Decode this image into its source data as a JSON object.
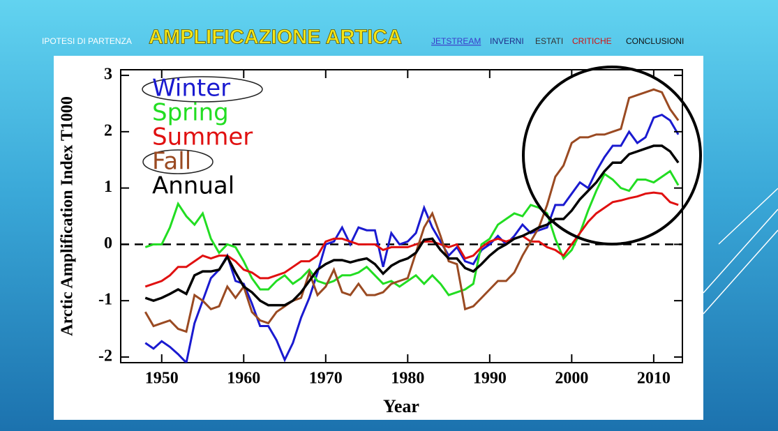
{
  "nav": [
    "IPOTESI DI PARTENZA",
    "AMPLIFICAZIONE ARTICA",
    "JETSTREAM",
    "INVERNI",
    "ESTATI",
    "CRITICHE",
    "CONCLUSIONI"
  ],
  "chart_data": {
    "type": "line",
    "x_label": "Year",
    "y_label": "Arctic Amplification Index T1000",
    "xlim": [
      1945,
      2013.5
    ],
    "xticks": [
      1950,
      1960,
      1970,
      1980,
      1990,
      2000,
      2010
    ],
    "ylim": [
      -2.1,
      3.1
    ],
    "yticks": [
      -2,
      -1,
      0,
      1,
      2,
      3
    ],
    "reference_line": 0,
    "x": [
      1948,
      1949,
      1950,
      1951,
      1952,
      1953,
      1954,
      1955,
      1956,
      1957,
      1958,
      1959,
      1960,
      1961,
      1962,
      1963,
      1964,
      1965,
      1966,
      1967,
      1968,
      1969,
      1970,
      1971,
      1972,
      1973,
      1974,
      1975,
      1976,
      1977,
      1978,
      1979,
      1980,
      1981,
      1982,
      1983,
      1984,
      1985,
      1986,
      1987,
      1988,
      1989,
      1990,
      1991,
      1992,
      1993,
      1994,
      1995,
      1996,
      1997,
      1998,
      1999,
      2000,
      2001,
      2002,
      2003,
      2004,
      2005,
      2006,
      2007,
      2008,
      2009,
      2010,
      2011,
      2012,
      2013
    ],
    "series": [
      {
        "name": "Winter",
        "color": "#1a1ad0",
        "values": [
          -1.75,
          -1.85,
          -1.72,
          -1.82,
          -1.95,
          -2.1,
          -1.4,
          -1.0,
          -0.6,
          -0.45,
          -0.2,
          -0.65,
          -0.7,
          -1.05,
          -1.45,
          -1.45,
          -1.7,
          -2.05,
          -1.75,
          -1.3,
          -0.95,
          -0.5,
          0.0,
          0.05,
          0.3,
          0.0,
          0.3,
          0.25,
          0.25,
          -0.4,
          0.2,
          0.0,
          0.05,
          0.2,
          0.65,
          0.3,
          0.05,
          -0.2,
          -0.05,
          -0.3,
          -0.35,
          -0.1,
          0.0,
          0.15,
          0.0,
          0.15,
          0.35,
          0.2,
          0.25,
          0.3,
          0.7,
          0.7,
          0.9,
          1.1,
          1.0,
          1.3,
          1.55,
          1.75,
          1.75,
          2.0,
          1.8,
          1.9,
          2.25,
          2.3,
          2.2,
          1.95
        ]
      },
      {
        "name": "Spring",
        "color": "#22dd22",
        "values": [
          -0.05,
          0.0,
          0.0,
          0.3,
          0.72,
          0.5,
          0.35,
          0.55,
          0.1,
          -0.15,
          0.0,
          -0.05,
          -0.3,
          -0.6,
          -0.8,
          -0.8,
          -0.65,
          -0.55,
          -0.7,
          -0.6,
          -0.45,
          -0.65,
          -0.7,
          -0.65,
          -0.55,
          -0.55,
          -0.5,
          -0.4,
          -0.55,
          -0.7,
          -0.65,
          -0.75,
          -0.65,
          -0.55,
          -0.7,
          -0.55,
          -0.7,
          -0.9,
          -0.85,
          -0.8,
          -0.7,
          0.0,
          0.1,
          0.35,
          0.45,
          0.55,
          0.5,
          0.7,
          0.65,
          0.55,
          0.1,
          -0.25,
          -0.1,
          0.2,
          0.6,
          0.95,
          1.25,
          1.15,
          1.0,
          0.95,
          1.15,
          1.15,
          1.1,
          1.2,
          1.3,
          1.05
        ]
      },
      {
        "name": "Summer",
        "color": "#e01010",
        "values": [
          -0.75,
          -0.7,
          -0.65,
          -0.55,
          -0.4,
          -0.4,
          -0.3,
          -0.2,
          -0.25,
          -0.2,
          -0.2,
          -0.3,
          -0.45,
          -0.5,
          -0.6,
          -0.6,
          -0.55,
          -0.5,
          -0.4,
          -0.3,
          -0.3,
          -0.2,
          0.05,
          0.1,
          0.1,
          0.05,
          0.0,
          0.0,
          0.0,
          -0.1,
          -0.05,
          -0.05,
          -0.05,
          0.0,
          0.05,
          0.05,
          0.0,
          -0.05,
          0.0,
          -0.25,
          -0.2,
          -0.05,
          0.05,
          0.1,
          0.05,
          0.1,
          0.15,
          0.05,
          0.05,
          -0.05,
          -0.1,
          -0.2,
          0.0,
          0.2,
          0.4,
          0.55,
          0.65,
          0.75,
          0.78,
          0.82,
          0.85,
          0.9,
          0.92,
          0.9,
          0.75,
          0.7
        ]
      },
      {
        "name": "Fall",
        "color": "#9a4a22",
        "values": [
          -1.2,
          -1.45,
          -1.4,
          -1.35,
          -1.5,
          -1.55,
          -0.9,
          -1.0,
          -1.15,
          -1.1,
          -0.75,
          -0.95,
          -0.75,
          -1.2,
          -1.35,
          -1.4,
          -1.2,
          -1.1,
          -1.0,
          -0.95,
          -0.5,
          -0.9,
          -0.75,
          -0.45,
          -0.85,
          -0.9,
          -0.7,
          -0.9,
          -0.9,
          -0.85,
          -0.7,
          -0.65,
          -0.6,
          -0.15,
          0.3,
          0.55,
          0.15,
          -0.3,
          -0.35,
          -1.15,
          -1.1,
          -0.95,
          -0.8,
          -0.65,
          -0.65,
          -0.5,
          -0.2,
          0.05,
          0.3,
          0.7,
          1.2,
          1.4,
          1.8,
          1.9,
          1.9,
          1.95,
          1.95,
          2.0,
          2.05,
          2.6,
          2.65,
          2.7,
          2.75,
          2.7,
          2.4,
          2.2
        ]
      },
      {
        "name": "Annual",
        "color": "#000000",
        "values": [
          -0.95,
          -1.0,
          -0.95,
          -0.88,
          -0.8,
          -0.88,
          -0.55,
          -0.48,
          -0.48,
          -0.45,
          -0.22,
          -0.5,
          -0.75,
          -0.85,
          -1.0,
          -1.08,
          -1.08,
          -1.08,
          -1.0,
          -0.85,
          -0.65,
          -0.45,
          -0.35,
          -0.28,
          -0.28,
          -0.32,
          -0.28,
          -0.25,
          -0.35,
          -0.52,
          -0.38,
          -0.3,
          -0.25,
          -0.15,
          0.08,
          0.1,
          -0.1,
          -0.25,
          -0.25,
          -0.42,
          -0.48,
          -0.35,
          -0.2,
          -0.08,
          0.0,
          0.1,
          0.15,
          0.22,
          0.3,
          0.35,
          0.45,
          0.45,
          0.6,
          0.8,
          0.95,
          1.1,
          1.3,
          1.45,
          1.45,
          1.6,
          1.65,
          1.7,
          1.75,
          1.75,
          1.65,
          1.45
        ]
      }
    ]
  }
}
